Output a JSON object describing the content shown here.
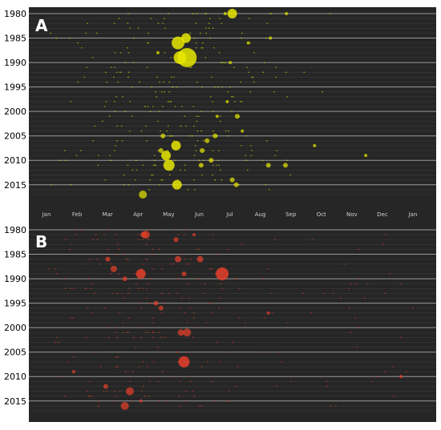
{
  "figure": {
    "panels": [
      {
        "id": "A",
        "label": "A",
        "color": "#e8e800",
        "x_ticks": [
          "Jan",
          "Feb",
          "Mar",
          "Apr",
          "May",
          "Jun",
          "Jul",
          "Aug",
          "Sep",
          "Oct",
          "Nov",
          "Dec",
          "Jan"
        ],
        "y_ticks": [
          "1980",
          "1985",
          "1990",
          "1995",
          "2000",
          "2005",
          "2010",
          "2015"
        ]
      },
      {
        "id": "B",
        "label": "B",
        "color": "#e8402a",
        "x_ticks": [],
        "y_ticks": [
          "1980",
          "1985",
          "1990",
          "1995",
          "2000",
          "2005",
          "2010",
          "2015"
        ]
      }
    ]
  },
  "chart_data": [
    {
      "type": "scatter",
      "panel": "A",
      "title": "",
      "xlabel": "",
      "ylabel": "",
      "x_axis": "day of year (Jan 1 to next Jan 1)",
      "xlim": [
        0,
        365
      ],
      "ylim": [
        1980,
        2017
      ],
      "grid": true,
      "color": "#e8e800",
      "size_encoding": "bubble area",
      "points": [
        {
          "date": "Jul 5",
          "year": 1980,
          "size": 6
        },
        {
          "date": "Jun 28",
          "year": 1980,
          "size": 2
        },
        {
          "date": "Aug 28",
          "year": 1980,
          "size": 2
        },
        {
          "date": "May 20",
          "year": 1985,
          "size": 6
        },
        {
          "date": "May 12",
          "year": 1986,
          "size": 8
        },
        {
          "date": "May 14",
          "year": 1989,
          "size": 8
        },
        {
          "date": "May 21",
          "year": 1989,
          "size": 12
        },
        {
          "date": "Apr 22",
          "year": 1988,
          "size": 2
        },
        {
          "date": "Jul 3",
          "year": 1990,
          "size": 2
        },
        {
          "date": "Jul 21",
          "year": 1986,
          "size": 2
        },
        {
          "date": "Aug 12",
          "year": 1985,
          "size": 2
        },
        {
          "date": "Jun 20",
          "year": 2001,
          "size": 2
        },
        {
          "date": "Jun 30",
          "year": 1998,
          "size": 2
        },
        {
          "date": "Jul 10",
          "year": 2001,
          "size": 3
        },
        {
          "date": "Jun 18",
          "year": 2005,
          "size": 3
        },
        {
          "date": "Jul 15",
          "year": 2004,
          "size": 2
        },
        {
          "date": "Apr 27",
          "year": 2005,
          "size": 3
        },
        {
          "date": "May 10",
          "year": 2007,
          "size": 6
        },
        {
          "date": "Jun 5",
          "year": 2008,
          "size": 3
        },
        {
          "date": "Jun 10",
          "year": 2006,
          "size": 3
        },
        {
          "date": "Jun 14",
          "year": 2010,
          "size": 3
        },
        {
          "date": "Apr 25",
          "year": 2008,
          "size": 3
        },
        {
          "date": "Apr 30",
          "year": 2009,
          "size": 6
        },
        {
          "date": "May 3",
          "year": 2011,
          "size": 7
        },
        {
          "date": "Jun 4",
          "year": 2011,
          "size": 3
        },
        {
          "date": "May 11",
          "year": 2015,
          "size": 6
        },
        {
          "date": "Jul 9",
          "year": 2015,
          "size": 3
        },
        {
          "date": "Jul 5",
          "year": 2014,
          "size": 3
        },
        {
          "date": "Aug 10",
          "year": 2011,
          "size": 3
        },
        {
          "date": "Aug 27",
          "year": 2011,
          "size": 3
        },
        {
          "date": "Apr 7",
          "year": 2017,
          "size": 5
        },
        {
          "date": "Nov 15",
          "year": 2009,
          "size": 2
        },
        {
          "date": "Sep 25",
          "year": 2007,
          "size": 2
        }
      ]
    },
    {
      "type": "scatter",
      "panel": "B",
      "title": "",
      "xlabel": "",
      "ylabel": "",
      "x_axis": "day of year (Jan 1 to next Jan 1)",
      "xlim": [
        0,
        365
      ],
      "ylim": [
        1980,
        2017
      ],
      "grid": true,
      "color": "#e8402a",
      "size_encoding": "bubble area",
      "points": [
        {
          "date": "Apr 8",
          "year": 1981,
          "size": 4
        },
        {
          "date": "Apr 10",
          "year": 1981,
          "size": 5
        },
        {
          "date": "May 10",
          "year": 1982,
          "size": 3
        },
        {
          "date": "May 28",
          "year": 1981,
          "size": 2
        },
        {
          "date": "Mar 3",
          "year": 1986,
          "size": 3
        },
        {
          "date": "May 12",
          "year": 1986,
          "size": 4
        },
        {
          "date": "Jun 3",
          "year": 1986,
          "size": 4
        },
        {
          "date": "Mar 9",
          "year": 1988,
          "size": 4
        },
        {
          "date": "Apr 5",
          "year": 1989,
          "size": 6
        },
        {
          "date": "Jun 25",
          "year": 1989,
          "size": 8
        },
        {
          "date": "May 18",
          "year": 1989,
          "size": 3
        },
        {
          "date": "Mar 20",
          "year": 1990,
          "size": 3
        },
        {
          "date": "Apr 20",
          "year": 1995,
          "size": 3
        },
        {
          "date": "Apr 25",
          "year": 1996,
          "size": 3
        },
        {
          "date": "May 15",
          "year": 2001,
          "size": 4
        },
        {
          "date": "May 21",
          "year": 2001,
          "size": 5
        },
        {
          "date": "May 18",
          "year": 2007,
          "size": 7
        },
        {
          "date": "Jan 28",
          "year": 2009,
          "size": 2
        },
        {
          "date": "Mar 1",
          "year": 2012,
          "size": 3
        },
        {
          "date": "Mar 25",
          "year": 2013,
          "size": 5
        },
        {
          "date": "Mar 20",
          "year": 2016,
          "size": 5
        },
        {
          "date": "Apr 5",
          "year": 2015,
          "size": 2
        },
        {
          "date": "Aug 10",
          "year": 1997,
          "size": 2
        },
        {
          "date": "Dec 20",
          "year": 2010,
          "size": 2
        }
      ]
    }
  ]
}
